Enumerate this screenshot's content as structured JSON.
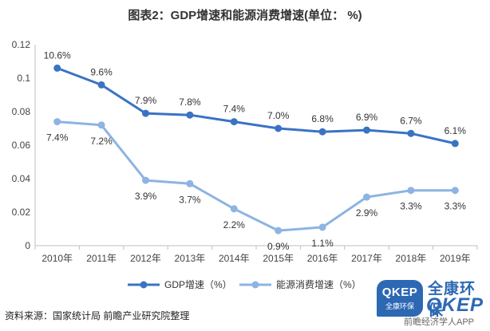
{
  "title": "图表2：GDP增速和能源消费增速(单位： %)",
  "source": "资料来源：国家统计局 前瞻产业研究院整理",
  "logo": {
    "badge_en": "QKEP",
    "badge_cn": "全康环保",
    "name_cn": "全康环保",
    "name_en": "QKEP",
    "app_text": "前瞻经济学人APP"
  },
  "chart_data": {
    "type": "line",
    "title": "图表2：GDP增速和能源消费增速(单位： %)",
    "categories": [
      "2010年",
      "2011年",
      "2012年",
      "2013年",
      "2014年",
      "2015年",
      "2016年",
      "2017年",
      "2018年",
      "2019年"
    ],
    "ylim": [
      0,
      0.12
    ],
    "yticks": [
      0,
      0.02,
      0.04,
      0.06,
      0.08,
      0.1,
      0.12
    ],
    "ytick_labels": [
      "0",
      "0.02",
      "0.04",
      "0.06",
      "0.08",
      "0.1",
      "0.12"
    ],
    "grid": false,
    "legend_position": "bottom",
    "series": [
      {
        "name": "GDP增速（%）",
        "color": "#3a73c4",
        "values": [
          0.106,
          0.096,
          0.079,
          0.078,
          0.074,
          0.07,
          0.068,
          0.069,
          0.067,
          0.061
        ],
        "labels": [
          "10.6%",
          "9.6%",
          "7.9%",
          "7.8%",
          "7.4%",
          "7.0%",
          "6.8%",
          "6.9%",
          "6.7%",
          "6.1%"
        ],
        "label_position": "above"
      },
      {
        "name": "能源消费增速（%）",
        "color": "#8db4e2",
        "values": [
          0.074,
          0.072,
          0.039,
          0.037,
          0.022,
          0.009,
          0.011,
          0.029,
          0.033,
          0.033
        ],
        "labels": [
          "7.4%",
          "7.2%",
          "3.9%",
          "3.7%",
          "2.2%",
          "0.9%",
          "1.1%",
          "2.9%",
          "3.3%",
          "3.3%"
        ],
        "label_position": "below"
      }
    ]
  }
}
